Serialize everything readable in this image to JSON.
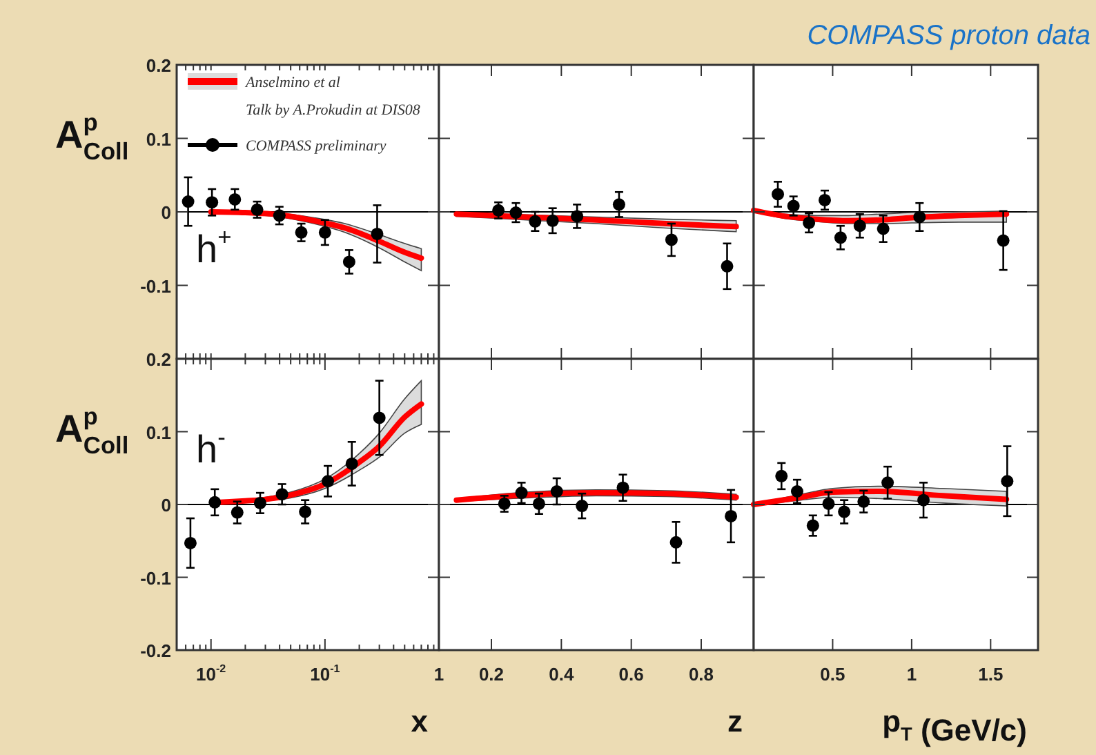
{
  "chart_data": [
    {
      "type": "scatter",
      "ylabel": "A$^{p}$$_{Coll}$",
      "log": "x",
      "xlim": [
        0.005,
        1
      ],
      "xticks": [
        {
          "value": 0.006,
          "label": null
        },
        {
          "value": 0.007,
          "label": null
        },
        {
          "value": 0.008,
          "label": null
        },
        {
          "value": 0.009,
          "label": null
        },
        {
          "value": 0.01,
          "label": null
        },
        {
          "value": 0.02,
          "label": null
        },
        {
          "value": 0.03,
          "label": null
        },
        {
          "value": 0.04,
          "label": null
        },
        {
          "value": 0.05,
          "label": null
        },
        {
          "value": 0.06,
          "label": null
        },
        {
          "value": 0.07,
          "label": null
        },
        {
          "value": 0.08,
          "label": null
        },
        {
          "value": 0.09,
          "label": null
        },
        {
          "value": 0.1,
          "label": null
        },
        {
          "value": 0.2,
          "label": null
        },
        {
          "value": 0.3,
          "label": null
        },
        {
          "value": 0.4,
          "label": null
        },
        {
          "value": 0.5,
          "label": null
        },
        {
          "value": 0.6,
          "label": null
        },
        {
          "value": 0.7,
          "label": null
        },
        {
          "value": 0.8,
          "label": null
        },
        {
          "value": 0.9,
          "label": null
        },
        {
          "value": 1,
          "label": null
        }
      ],
      "ylim": [
        -0.2,
        0.2
      ],
      "yticks": [
        {
          "value": -0.2,
          "label": null
        },
        -0.1,
        0,
        0.1,
        0.2
      ],
      "tick_labels": "y",
      "legend": "top left",
      "ref_lines": [
        {
          "axis": "y",
          "value": 0,
          "color": "#000000"
        }
      ],
      "annotations": [
        "h$^{+}$"
      ],
      "series": [
        {
          "name": "Anselmino et al\nTalk by A.Prokudin at DIS08",
          "type": "line",
          "color": "#ff0000",
          "x": [
            0.01,
            0.02,
            0.04,
            0.08,
            0.15,
            0.3,
            0.5,
            0.7
          ],
          "values": [
            0,
            -0.001,
            -0.004,
            -0.012,
            -0.022,
            -0.04,
            -0.055,
            -0.063
          ],
          "upper": [
            0.001,
            0,
            -0.002,
            -0.008,
            -0.016,
            -0.031,
            -0.043,
            -0.05
          ],
          "lower": [
            -0.001,
            -0.003,
            -0.007,
            -0.016,
            -0.028,
            -0.049,
            -0.068,
            -0.08
          ]
        },
        {
          "name": "COMPASS preliminary",
          "marker": "circle",
          "color": "#000000",
          "x": [
            0.0063,
            0.0102,
            0.0162,
            0.0254,
            0.0398,
            0.062,
            0.1,
            0.163,
            0.287
          ],
          "values": [
            0.014,
            0.013,
            0.017,
            0.003,
            -0.005,
            -0.028,
            -0.028,
            -0.068,
            -0.03
          ],
          "errors": [
            0.033,
            0.018,
            0.014,
            0.011,
            0.012,
            0.012,
            0.017,
            0.016,
            0.039
          ]
        }
      ]
    },
    {
      "type": "scatter",
      "xlim": [
        0.05,
        0.95
      ],
      "xticks": [
        0.2,
        0.4,
        0.6,
        0.8
      ],
      "ylim": [
        -0.2,
        0.2
      ],
      "yticks": [
        -0.2,
        -0.1,
        0,
        0.1,
        0.2
      ],
      "tick_labels": false,
      "ref_lines": [
        {
          "axis": "y",
          "value": 0,
          "color": "#000000"
        }
      ],
      "series": [
        {
          "type": "line",
          "color": "#ff0000",
          "x": [
            0.1,
            0.3,
            0.5,
            0.7,
            0.9
          ],
          "values": [
            -0.003,
            -0.007,
            -0.011,
            -0.016,
            -0.02
          ],
          "upper": [
            -0.001,
            -0.004,
            -0.007,
            -0.01,
            -0.012
          ],
          "lower": [
            -0.006,
            -0.011,
            -0.016,
            -0.022,
            -0.027
          ]
        },
        {
          "marker": "circle",
          "color": "#000000",
          "x": [
            0.22,
            0.27,
            0.325,
            0.375,
            0.445,
            0.565,
            0.715,
            0.874
          ],
          "values": [
            0.002,
            -0.001,
            -0.013,
            -0.012,
            -0.006,
            0.01,
            -0.038,
            -0.074
          ],
          "errors": [
            0.011,
            0.013,
            0.013,
            0.017,
            0.016,
            0.017,
            0.022,
            0.031
          ]
        }
      ]
    },
    {
      "type": "scatter",
      "title": "COMPASS proton data",
      "xlim": [
        0,
        1.8
      ],
      "xticks": [
        0.5,
        1,
        1.5
      ],
      "ylim": [
        -0.2,
        0.2
      ],
      "yticks": [
        -0.2,
        -0.1,
        0,
        0.1,
        0.2
      ],
      "tick_labels": false,
      "ref_lines": [
        {
          "axis": "y",
          "value": 0,
          "color": "#000000"
        }
      ],
      "series": [
        {
          "type": "line",
          "color": "#ff0000",
          "x": [
            0,
            0.2,
            0.4,
            0.6,
            0.8,
            1.0,
            1.3,
            1.6
          ],
          "values": [
            0.002,
            -0.006,
            -0.01,
            -0.012,
            -0.011,
            -0.008,
            -0.005,
            -0.003
          ],
          "upper": [
            0.003,
            -0.003,
            -0.005,
            -0.005,
            -0.003,
            -0.001,
            0,
            0.001
          ],
          "lower": [
            0,
            -0.009,
            -0.013,
            -0.016,
            -0.016,
            -0.015,
            -0.014,
            -0.014
          ]
        },
        {
          "marker": "circle",
          "color": "#000000",
          "x": [
            0.153,
            0.252,
            0.35,
            0.45,
            0.55,
            0.672,
            0.82,
            1.05,
            1.58
          ],
          "values": [
            0.024,
            0.008,
            -0.015,
            0.016,
            -0.035,
            -0.019,
            -0.023,
            -0.007,
            -0.039
          ],
          "errors": [
            0.017,
            0.013,
            0.013,
            0.013,
            0.016,
            0.016,
            0.018,
            0.019,
            0.04
          ]
        }
      ]
    },
    {
      "type": "scatter",
      "ylabel": "A$^{p}$$_{Coll}$",
      "xlabel": "x",
      "log": "x",
      "xlim": [
        0.005,
        1
      ],
      "xticks": [
        {
          "value": 0.006,
          "label": null
        },
        {
          "value": 0.007,
          "label": null
        },
        {
          "value": 0.008,
          "label": null
        },
        {
          "value": 0.009,
          "label": null
        },
        {
          "value": 0.01,
          "label": "10$^{-2}$"
        },
        {
          "value": 0.02,
          "label": null
        },
        {
          "value": 0.03,
          "label": null
        },
        {
          "value": 0.04,
          "label": null
        },
        {
          "value": 0.05,
          "label": null
        },
        {
          "value": 0.06,
          "label": null
        },
        {
          "value": 0.07,
          "label": null
        },
        {
          "value": 0.08,
          "label": null
        },
        {
          "value": 0.09,
          "label": null
        },
        {
          "value": 0.1,
          "label": "10$^{-1}$"
        },
        {
          "value": 0.2,
          "label": null
        },
        {
          "value": 0.3,
          "label": null
        },
        {
          "value": 0.4,
          "label": null
        },
        {
          "value": 0.5,
          "label": null
        },
        {
          "value": 0.6,
          "label": null
        },
        {
          "value": 0.7,
          "label": null
        },
        {
          "value": 0.8,
          "label": null
        },
        {
          "value": 0.9,
          "label": null
        },
        1
      ],
      "ylim": [
        -0.2,
        0.2
      ],
      "yticks": [
        -0.2,
        -0.1,
        0,
        0.1,
        0.2
      ],
      "ref_lines": [
        {
          "axis": "y",
          "value": 0,
          "color": "#000000"
        }
      ],
      "annotations": [
        "h$^{-}$"
      ],
      "series": [
        {
          "type": "line",
          "color": "#ff0000",
          "x": [
            0.012,
            0.02,
            0.03,
            0.05,
            0.1,
            0.2,
            0.3,
            0.5,
            0.7
          ],
          "values": [
            0.003,
            0.005,
            0.007,
            0.013,
            0.028,
            0.058,
            0.08,
            0.12,
            0.138
          ],
          "upper": [
            0.005,
            0.007,
            0.01,
            0.017,
            0.035,
            0.07,
            0.098,
            0.145,
            0.17
          ],
          "lower": [
            0.001,
            0.003,
            0.005,
            0.009,
            0.022,
            0.047,
            0.065,
            0.098,
            0.11
          ]
        },
        {
          "marker": "circle",
          "color": "#000000",
          "x": [
            0.0066,
            0.0108,
            0.017,
            0.027,
            0.042,
            0.067,
            0.106,
            0.172,
            0.3
          ],
          "values": [
            -0.053,
            0.003,
            -0.011,
            0.002,
            0.014,
            -0.01,
            0.032,
            0.056,
            0.119
          ],
          "errors": [
            0.034,
            0.018,
            0.015,
            0.014,
            0.014,
            0.016,
            0.021,
            0.03,
            0.051
          ]
        }
      ]
    },
    {
      "type": "scatter",
      "xlabel": "z",
      "xlim": [
        0.05,
        0.95
      ],
      "xticks": [
        0.2,
        0.4,
        0.6,
        0.8
      ],
      "ylim": [
        -0.2,
        0.2
      ],
      "yticks": [
        -0.2,
        -0.1,
        0,
        0.1,
        0.2
      ],
      "tick_labels": "x",
      "ref_lines": [
        {
          "axis": "y",
          "value": 0,
          "color": "#000000"
        }
      ],
      "series": [
        {
          "type": "line",
          "color": "#ff0000",
          "x": [
            0.1,
            0.3,
            0.5,
            0.7,
            0.9
          ],
          "values": [
            0.006,
            0.013,
            0.016,
            0.015,
            0.01
          ],
          "upper": [
            0.008,
            0.017,
            0.02,
            0.019,
            0.014
          ],
          "lower": [
            0.004,
            0.009,
            0.012,
            0.011,
            0.006
          ]
        },
        {
          "marker": "circle",
          "color": "#000000",
          "x": [
            0.237,
            0.286,
            0.336,
            0.387,
            0.459,
            0.576,
            0.728,
            0.885
          ],
          "values": [
            0.001,
            0.016,
            0.001,
            0.018,
            -0.002,
            0.023,
            -0.052,
            -0.016
          ],
          "errors": [
            0.011,
            0.014,
            0.014,
            0.018,
            0.017,
            0.018,
            0.028,
            0.036
          ]
        }
      ]
    },
    {
      "type": "scatter",
      "xlabel": "p$_{T}$ (GeV/c)",
      "xlim": [
        0,
        1.8
      ],
      "xticks": [
        0.5,
        1,
        1.5
      ],
      "ylim": [
        -0.2,
        0.2
      ],
      "yticks": [
        -0.2,
        -0.1,
        0,
        0.1,
        0.2
      ],
      "tick_labels": "x",
      "ref_lines": [
        {
          "axis": "y",
          "value": 0,
          "color": "#000000"
        }
      ],
      "series": [
        {
          "type": "line",
          "color": "#ff0000",
          "x": [
            0,
            0.3,
            0.5,
            0.8,
            1.2,
            1.6
          ],
          "values": [
            0,
            0.01,
            0.017,
            0.018,
            0.012,
            0.007
          ],
          "upper": [
            0.001,
            0.014,
            0.022,
            0.025,
            0.022,
            0.018
          ],
          "lower": [
            -0.001,
            0.006,
            0.01,
            0.008,
            0.002,
            -0.002
          ]
        },
        {
          "marker": "circle",
          "color": "#000000",
          "x": [
            0.176,
            0.275,
            0.375,
            0.474,
            0.573,
            0.696,
            0.848,
            1.075,
            1.605
          ],
          "values": [
            0.039,
            0.018,
            -0.029,
            0.001,
            -0.01,
            0.004,
            0.03,
            0.006,
            0.032
          ],
          "errors": [
            0.018,
            0.016,
            0.014,
            0.016,
            0.016,
            0.015,
            0.022,
            0.024,
            0.048
          ]
        }
      ]
    }
  ]
}
